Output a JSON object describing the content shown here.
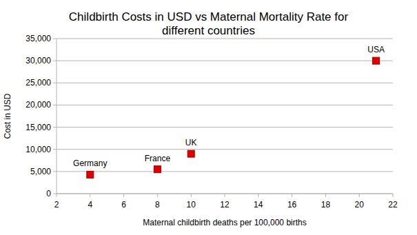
{
  "chart_data": {
    "type": "scatter",
    "title": "Childbirth Costs in USD vs Maternal Mortality Rate for different countries",
    "x_label": "Maternal childbirth deaths per 100,000 births",
    "y_label": "Cost in USD",
    "x": [
      4,
      8,
      10,
      21
    ],
    "values": [
      4300,
      5500,
      9000,
      30000
    ],
    "annotations": [
      "Germany",
      "France",
      "UK",
      "USA"
    ],
    "color": "#e00000",
    "marker": "square",
    "xlim": [
      2,
      22
    ],
    "xticks": [
      2,
      4,
      6,
      8,
      10,
      12,
      14,
      16,
      18,
      20,
      22
    ],
    "ylim": [
      0,
      35000
    ],
    "yticks": [
      0,
      {
        "value": 5000,
        "label": "5,000"
      },
      {
        "value": 10000,
        "label": "10,000"
      },
      {
        "value": 15000,
        "label": "15,000"
      },
      {
        "value": 20000,
        "label": "20,000"
      },
      {
        "value": 25000,
        "label": "25,000"
      },
      {
        "value": 30000,
        "label": "30,000"
      },
      {
        "value": 35000,
        "label": "35,000"
      }
    ],
    "grid": true
  }
}
